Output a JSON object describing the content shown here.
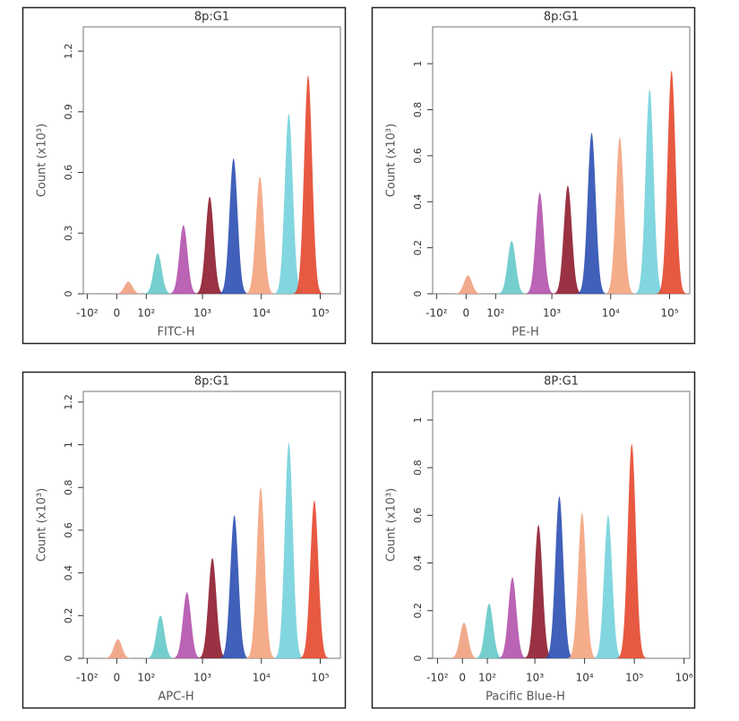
{
  "chart_data": [
    {
      "type": "area",
      "title": "8p:G1",
      "x_label": "FITC-H",
      "y_label": "Count (x10³)",
      "xlim": [
        -120,
        220000
      ],
      "ylim": [
        0,
        1.32
      ],
      "xticks": [
        {
          "value": -100,
          "label": "-10²"
        },
        0,
        {
          "value": 100,
          "label": "10²"
        },
        {
          "value": 1000,
          "label": "10³"
        },
        {
          "value": 10000,
          "label": "10⁴"
        },
        {
          "value": 100000,
          "label": "10⁵"
        }
      ],
      "yticks": [
        0,
        0.3,
        0.6,
        0.9,
        1.2
      ],
      "peaks": {
        "x": [
          33,
          167,
          472,
          1325,
          3363,
          9430,
          29200,
          62400
        ],
        "values": [
          0.06,
          0.2,
          0.34,
          0.48,
          0.67,
          0.58,
          0.89,
          1.08
        ],
        "colors": [
          "#f0a080",
          "#66c9c9",
          "#b452ad",
          "#8e1c2e",
          "#2b4fb3",
          "#f4a37e",
          "#74d2dd",
          "#e6472d"
        ]
      }
    },
    {
      "type": "area",
      "title": "8p:G1",
      "x_label": "PE-H",
      "y_label": "Count (x10³)",
      "xlim": [
        -120,
        220000
      ],
      "ylim": [
        0,
        1.16
      ],
      "xticks": [
        {
          "value": -100,
          "label": "-10²"
        },
        0,
        {
          "value": 100,
          "label": "10²"
        },
        {
          "value": 1000,
          "label": "10³"
        },
        {
          "value": 10000,
          "label": "10⁴"
        },
        {
          "value": 100000,
          "label": "10⁵"
        }
      ],
      "yticks": [
        0,
        0.2,
        0.4,
        0.6,
        0.8,
        1
      ],
      "peaks": {
        "x": [
          5,
          202,
          622,
          1870,
          4740,
          14260,
          45800,
          108000
        ],
        "values": [
          0.08,
          0.23,
          0.44,
          0.47,
          0.7,
          0.68,
          0.89,
          0.97
        ],
        "colors": [
          "#f0a080",
          "#66c9c9",
          "#b452ad",
          "#8e1c2e",
          "#2b4fb3",
          "#f4a37e",
          "#74d2dd",
          "#e6472d"
        ]
      }
    },
    {
      "type": "area",
      "title": "8p:G1",
      "x_label": "APC-H",
      "y_label": "Count (x10³)",
      "xlim": [
        -120,
        220000
      ],
      "ylim": [
        0,
        1.25
      ],
      "xticks": [
        {
          "value": -100,
          "label": "-10²"
        },
        0,
        {
          "value": 100,
          "label": "10²"
        },
        {
          "value": 1000,
          "label": "10³"
        },
        {
          "value": 10000,
          "label": "10⁴"
        },
        {
          "value": 100000,
          "label": "10⁵"
        }
      ],
      "yticks": [
        0,
        0.2,
        0.4,
        0.6,
        0.8,
        1,
        1.2
      ],
      "peaks": {
        "x": [
          3,
          187,
          542,
          1475,
          3480,
          9740,
          29200,
          79400
        ],
        "values": [
          0.09,
          0.2,
          0.31,
          0.47,
          0.67,
          0.8,
          1.01,
          0.74
        ],
        "colors": [
          "#f0a080",
          "#66c9c9",
          "#b452ad",
          "#8e1c2e",
          "#2b4fb3",
          "#f4a37e",
          "#74d2dd",
          "#e6472d"
        ]
      }
    },
    {
      "type": "area",
      "title": "8P:G1",
      "x_label": "Pacific Blue-H",
      "y_label": "Count (x10³)",
      "xlim": [
        -130,
        1300000
      ],
      "ylim": [
        0,
        1.12
      ],
      "xticks": [
        {
          "value": -100,
          "label": "-10²"
        },
        0,
        {
          "value": 100,
          "label": "10²"
        },
        {
          "value": 1000,
          "label": "10³"
        },
        {
          "value": 10000,
          "label": "10⁴"
        },
        {
          "value": 100000,
          "label": "10⁵"
        },
        {
          "value": 1000000,
          "label": "10⁶"
        }
      ],
      "yticks": [
        0,
        0.2,
        0.4,
        0.6,
        0.8,
        1
      ],
      "peaks": {
        "x": [
          5,
          110,
          350,
          1180,
          3100,
          8900,
          29800,
          89000
        ],
        "values": [
          0.15,
          0.23,
          0.34,
          0.56,
          0.68,
          0.61,
          0.6,
          0.9
        ],
        "colors": [
          "#f0a080",
          "#66c9c9",
          "#b452ad",
          "#8e1c2e",
          "#2b4fb3",
          "#f4a37e",
          "#74d2dd",
          "#e6472d"
        ]
      }
    }
  ]
}
